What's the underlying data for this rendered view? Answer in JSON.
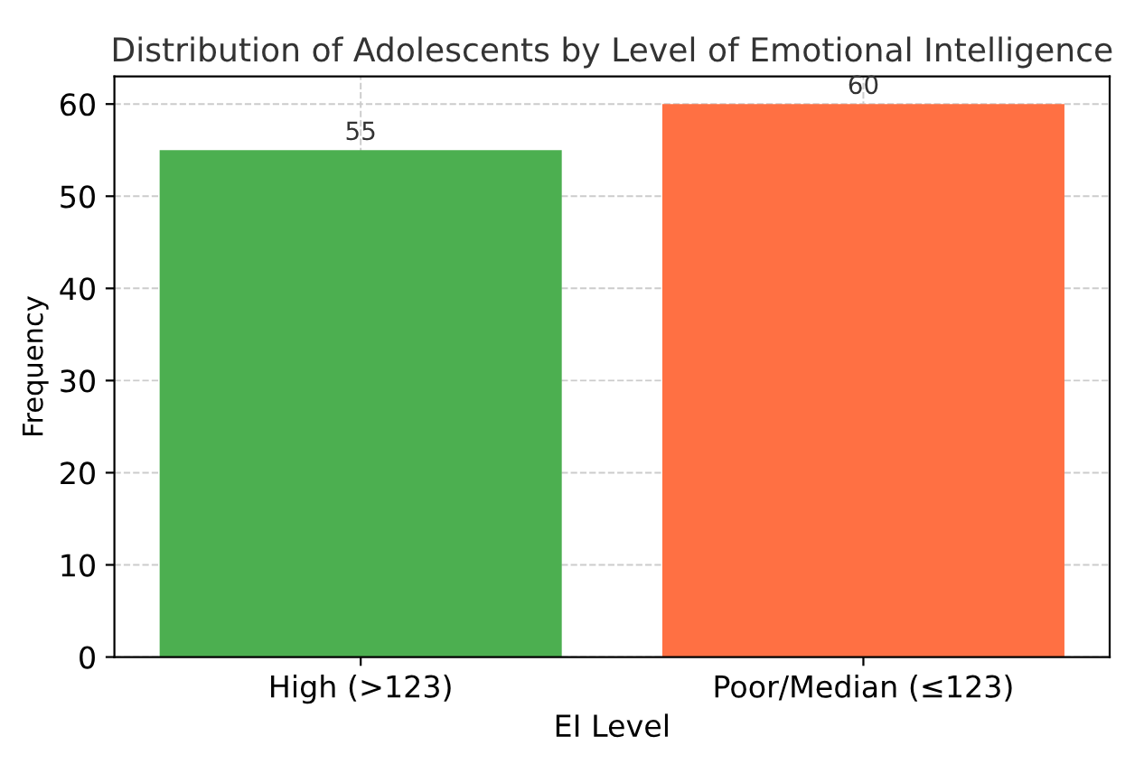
{
  "chart_data": {
    "type": "bar",
    "title": "Distribution of Adolescents by Level of Emotional Intelligence",
    "xlabel": "EI Level",
    "ylabel": "Frequency",
    "categories": [
      "High (>123)",
      "Poor/Median (≤123)"
    ],
    "values": [
      55,
      60
    ],
    "colors": [
      "#4caf50",
      "#ff7043"
    ],
    "ylim": [
      0,
      63
    ],
    "yticks": [
      0,
      10,
      20,
      30,
      40,
      50,
      60
    ],
    "grid": true,
    "data_labels": true
  }
}
